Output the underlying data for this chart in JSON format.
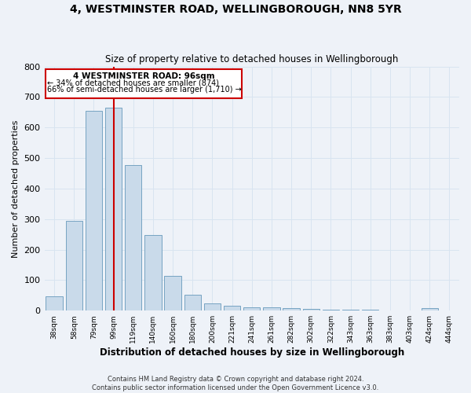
{
  "title1": "4, WESTMINSTER ROAD, WELLINGBOROUGH, NN8 5YR",
  "title2": "Size of property relative to detached houses in Wellingborough",
  "xlabel": "Distribution of detached houses by size in Wellingborough",
  "ylabel": "Number of detached properties",
  "categories": [
    "38sqm",
    "58sqm",
    "79sqm",
    "99sqm",
    "119sqm",
    "140sqm",
    "160sqm",
    "180sqm",
    "200sqm",
    "221sqm",
    "241sqm",
    "261sqm",
    "282sqm",
    "302sqm",
    "322sqm",
    "343sqm",
    "363sqm",
    "383sqm",
    "403sqm",
    "424sqm",
    "444sqm"
  ],
  "values": [
    47,
    293,
    655,
    665,
    478,
    248,
    113,
    52,
    25,
    15,
    12,
    12,
    7,
    5,
    4,
    3,
    2,
    1,
    1,
    7,
    1
  ],
  "bar_color": "#c9daea",
  "bar_edgecolor": "#6699bb",
  "vline_color": "#cc0000",
  "vline_x": 3,
  "annotation_title": "4 WESTMINSTER ROAD: 96sqm",
  "annotation_line1": "← 34% of detached houses are smaller (874)",
  "annotation_line2": "66% of semi-detached houses are larger (1,710) →",
  "annotation_box_color": "#cc0000",
  "annotation_bg": "#ffffff",
  "ylim": [
    0,
    800
  ],
  "yticks": [
    0,
    100,
    200,
    300,
    400,
    500,
    600,
    700,
    800
  ],
  "grid_color": "#d8e4f0",
  "footnote1": "Contains HM Land Registry data © Crown copyright and database right 2024.",
  "footnote2": "Contains public sector information licensed under the Open Government Licence v3.0.",
  "bg_color": "#eef2f8"
}
